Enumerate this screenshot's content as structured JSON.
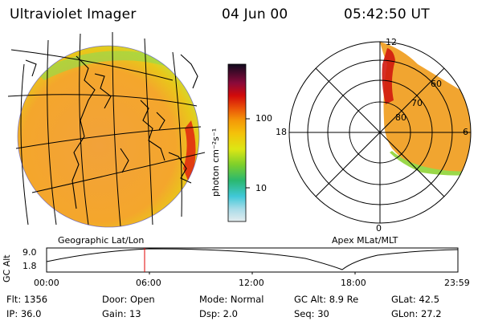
{
  "header": {
    "title": "Ultraviolet Imager",
    "date": "04 Jun 00",
    "time": "05:42:50  UT"
  },
  "geo_panel": {
    "label": "Geographic Lat/Lon"
  },
  "colorbar": {
    "unit_label": "photon cm⁻²s⁻¹",
    "ticks": [
      "100",
      "10"
    ],
    "scale": "log",
    "colors": [
      "#d9e6ea",
      "#67d9e6",
      "#1fb4b0",
      "#5cc23c",
      "#c8e61a",
      "#f4e10c",
      "#f4a60a",
      "#e8580a",
      "#d10a0a",
      "#7a0a2a",
      "#2a0a30",
      "#0a0a1e"
    ]
  },
  "polar_panel": {
    "label": "Apex MLat/MLT",
    "mlt_labels": [
      "12",
      "18",
      "6",
      "0"
    ],
    "lat_labels": [
      "60",
      "70",
      "80"
    ]
  },
  "altitude_plot": {
    "ylabel": "GC Alt",
    "yticks": [
      "9.0",
      "1.8"
    ],
    "xticks": [
      "00:00",
      "06:00",
      "12:00",
      "18:00",
      "23:59"
    ],
    "current_time_marker": "05:42:50"
  },
  "info": {
    "flt": "Flt:  1356",
    "ip": "IP:  36.0",
    "door": "Door:  Open",
    "gain": "Gain:  13",
    "mode": "Mode:  Normal",
    "dsp": "Dsp:       2.0",
    "gcalt": "GC Alt:  8.9  Re",
    "seq": "Seq:  30",
    "glat": "GLat:      42.5",
    "glon": "GLon:      27.2"
  }
}
